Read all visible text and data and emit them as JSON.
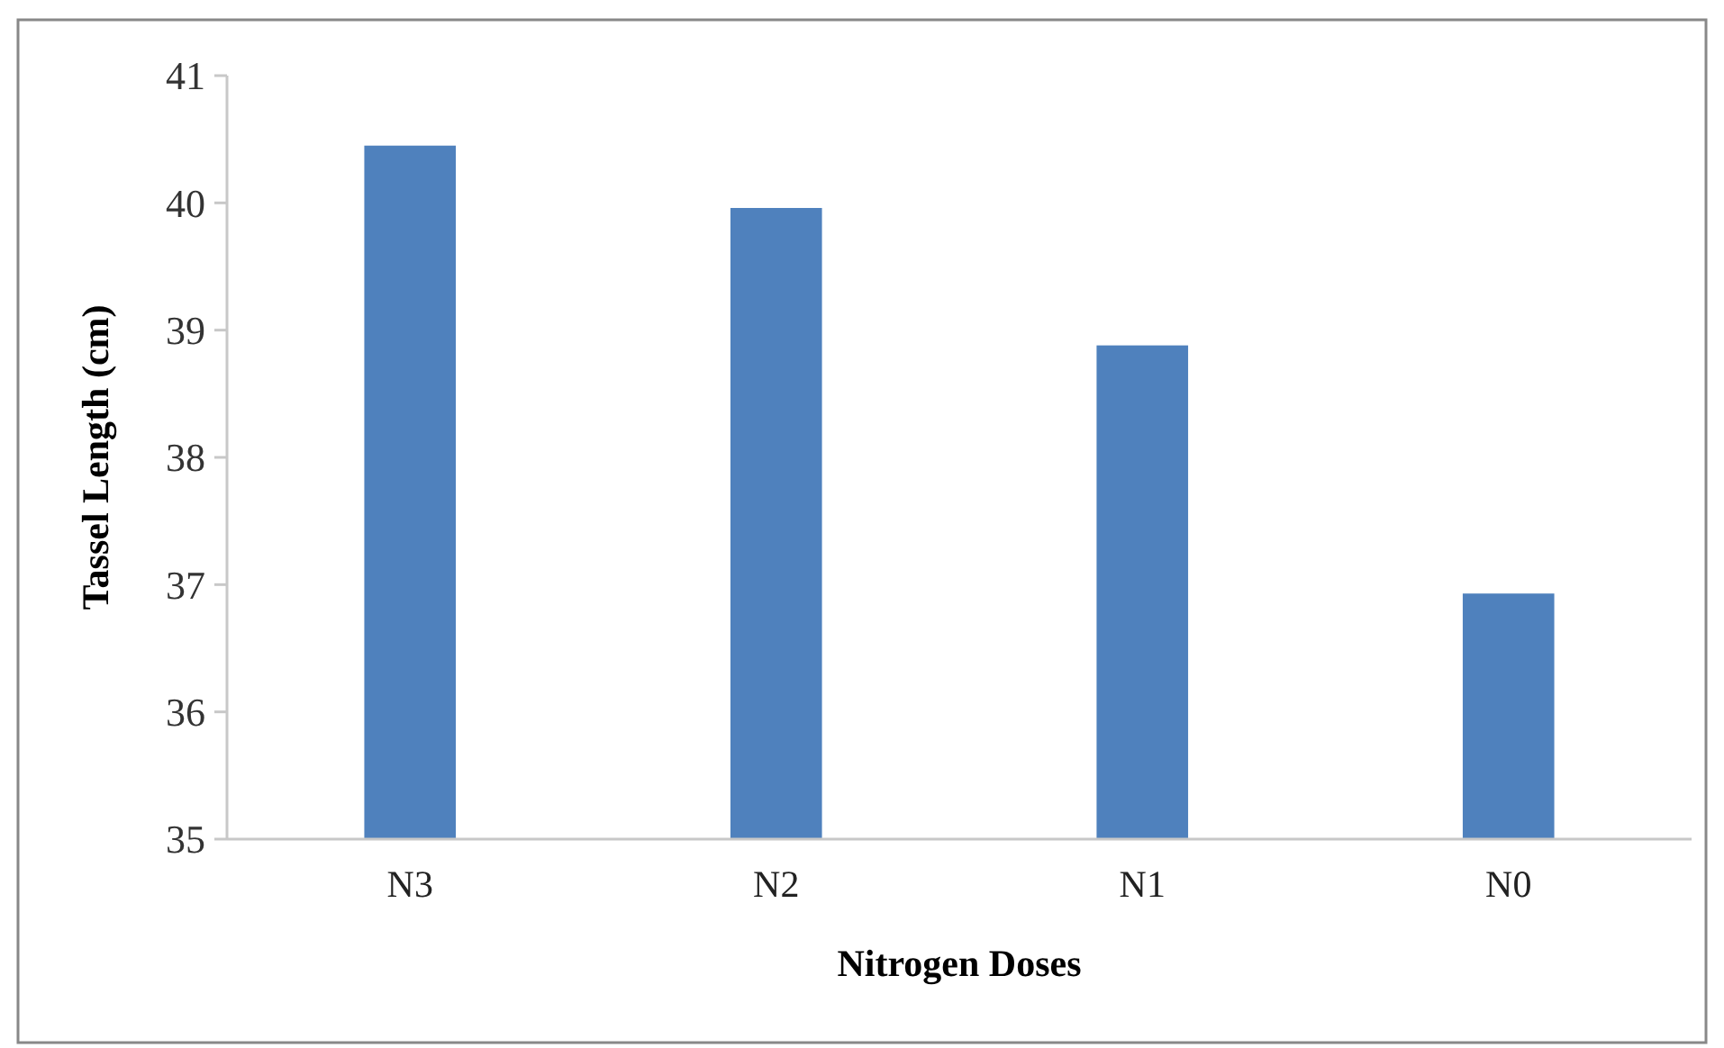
{
  "chart_data": {
    "type": "bar",
    "xlabel": "Nitrogen Doses",
    "ylabel": "Tassel Length (cm)",
    "categories": [
      "N3",
      "N2",
      "N1",
      "N0"
    ],
    "values": [
      40.45,
      39.96,
      38.88,
      36.93
    ],
    "color": "#4f81bd",
    "ylim": [
      35,
      41
    ],
    "yticks": [
      35,
      36,
      37,
      38,
      39,
      40,
      41
    ],
    "grid": false
  }
}
